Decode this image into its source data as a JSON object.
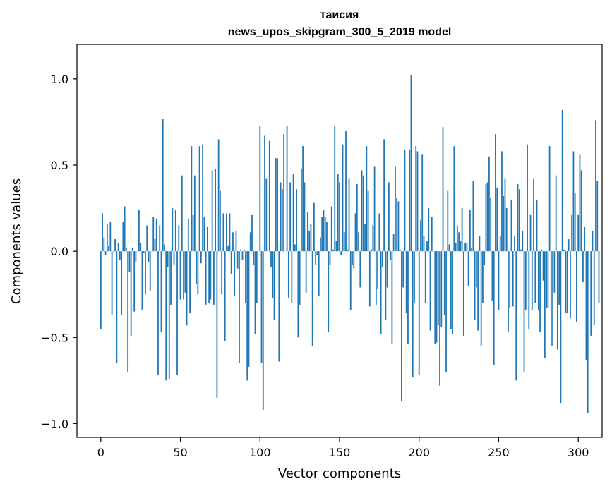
{
  "chart_data": {
    "type": "bar",
    "title": "таисия",
    "subtitle": "news_upos_skipgram_300_5_2019 model",
    "xlabel": "Vector components",
    "ylabel": "Components values",
    "xlim": [
      -15,
      315
    ],
    "ylim": [
      -1.08,
      1.2
    ],
    "xticks": [
      0,
      50,
      100,
      150,
      200,
      250,
      300
    ],
    "xtick_labels": [
      "0",
      "50",
      "100",
      "150",
      "200",
      "250",
      "300"
    ],
    "yticks": [
      -1.0,
      -0.5,
      0.0,
      0.5,
      1.0
    ],
    "ytick_labels": [
      "−1.0",
      "−0.5",
      "0.0",
      "0.5",
      "1.0"
    ],
    "bar_color": "#1f77b4",
    "grid": false,
    "legend": "none",
    "values": [
      -0.45,
      0.22,
      0.08,
      -0.02,
      0.16,
      0.03,
      0.17,
      -0.37,
      0.0,
      0.07,
      -0.65,
      0.05,
      -0.05,
      -0.37,
      0.17,
      0.26,
      0.02,
      -0.7,
      -0.12,
      -0.49,
      0.02,
      -0.35,
      -0.06,
      0.0,
      0.24,
      0.05,
      -0.34,
      -0.01,
      -0.25,
      0.15,
      -0.06,
      -0.23,
      0.0,
      0.2,
      0.07,
      0.19,
      -0.72,
      0.15,
      -0.47,
      0.77,
      0.04,
      -0.75,
      -0.09,
      -0.74,
      -0.31,
      0.25,
      -0.08,
      0.24,
      -0.72,
      0.15,
      -0.28,
      0.44,
      -0.28,
      -0.24,
      -0.43,
      0.19,
      -0.36,
      0.61,
      0.21,
      0.44,
      -0.19,
      -0.25,
      0.61,
      -0.07,
      0.62,
      0.2,
      -0.31,
      0.14,
      -0.3,
      -0.28,
      0.47,
      -0.31,
      0.48,
      -0.85,
      0.65,
      0.35,
      -0.25,
      0.22,
      -0.52,
      0.22,
      0.03,
      0.22,
      -0.13,
      0.11,
      -0.26,
      0.12,
      -0.1,
      -0.65,
      0.01,
      -0.05,
      0.01,
      -0.3,
      -0.75,
      -0.67,
      0.11,
      0.21,
      -0.08,
      -0.48,
      -0.3,
      0.0,
      0.73,
      -0.65,
      -0.92,
      0.67,
      0.42,
      0.0,
      0.64,
      -0.09,
      -0.27,
      -0.4,
      0.54,
      0.54,
      -0.64,
      0.4,
      0.36,
      0.68,
      0.0,
      0.73,
      -0.27,
      0.4,
      -0.3,
      0.45,
      0.04,
      0.36,
      -0.5,
      -0.31,
      0.48,
      0.61,
      0.4,
      -0.24,
      0.23,
      0.12,
      0.16,
      -0.55,
      0.28,
      -0.08,
      -0.02,
      -0.26,
      0.08,
      0.2,
      0.24,
      0.2,
      0.17,
      -0.47,
      -0.08,
      0.26,
      0.01,
      0.73,
      0.06,
      0.45,
      0.4,
      -0.02,
      0.62,
      0.11,
      0.7,
      0.01,
      0.42,
      -0.34,
      -0.08,
      -0.1,
      0.22,
      0.39,
      0.11,
      -0.21,
      0.47,
      0.44,
      0.16,
      0.61,
      0.35,
      -0.32,
      0.01,
      0.15,
      0.49,
      -0.31,
      -0.22,
      0.22,
      -0.48,
      -0.09,
      0.65,
      -0.4,
      -0.21,
      0.4,
      -0.05,
      -0.54,
      0.1,
      0.49,
      0.31,
      0.29,
      0.01,
      -0.87,
      -0.21,
      0.59,
      -0.36,
      -0.54,
      0.59,
      1.02,
      -0.73,
      -0.3,
      0.61,
      0.58,
      -0.72,
      0.18,
      0.56,
      0.09,
      -0.3,
      0.06,
      0.25,
      -0.46,
      0.2,
      0.0,
      -0.54,
      -0.53,
      -0.43,
      -0.78,
      -0.44,
      0.72,
      -0.37,
      -0.7,
      0.35,
      0.04,
      -0.45,
      -0.48,
      0.61,
      0.05,
      0.15,
      0.11,
      0.06,
      0.25,
      -0.49,
      0.05,
      0.05,
      -0.2,
      0.24,
      0.02,
      0.41,
      -0.4,
      -0.21,
      -0.46,
      0.09,
      -0.55,
      -0.3,
      -0.08,
      0.39,
      0.4,
      0.55,
      0.31,
      -0.29,
      -0.66,
      0.68,
      0.37,
      -0.34,
      0.09,
      0.58,
      0.32,
      0.42,
      0.25,
      -0.47,
      -0.33,
      0.3,
      -0.32,
      0.09,
      -0.75,
      0.39,
      0.36,
      0.01,
      0.12,
      -0.7,
      -0.34,
      0.62,
      -0.45,
      0.21,
      -0.34,
      0.42,
      -0.3,
      0.3,
      -0.34,
      -0.47,
      0.01,
      -0.17,
      -0.62,
      -0.33,
      -0.33,
      0.61,
      -0.55,
      -0.55,
      -0.24,
      0.44,
      -0.57,
      -0.31,
      -0.88,
      0.82,
      0.01,
      -0.36,
      -0.36,
      0.07,
      -0.39,
      0.21,
      0.58,
      0.34,
      -0.41,
      0.21,
      0.56,
      0.47,
      -0.18,
      0.14,
      -0.63,
      -0.94,
      0.0,
      -0.49,
      0.12,
      -0.43,
      0.76,
      0.41,
      -0.3
    ]
  }
}
